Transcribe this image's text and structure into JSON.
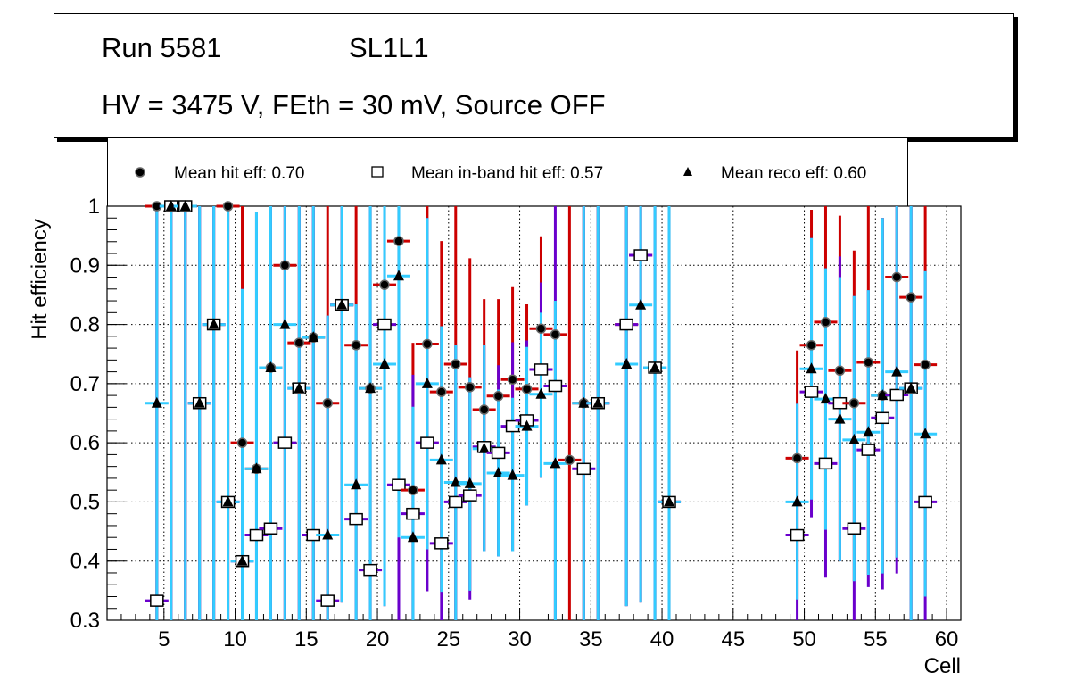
{
  "header": {
    "run": "Run 5581",
    "layer": "SL1L1",
    "conditions": "HV = 3475 V, FEth = 30 mV, Source OFF"
  },
  "colors": {
    "hit": "#cc0000",
    "inband": "#6a00cc",
    "reco": "#33ccff"
  },
  "chart_data": {
    "type": "scatter",
    "title": "Run 5581 SL1L1 — HV = 3475 V, FEth = 30 mV, Source OFF",
    "xlabel": "Cell",
    "ylabel": "Hit efficiency",
    "xlim": [
      1,
      61
    ],
    "ylim": [
      0.3,
      1.0
    ],
    "xticks": [
      5,
      10,
      15,
      20,
      25,
      30,
      35,
      40,
      45,
      50,
      55,
      60
    ],
    "yticks": [
      "0.3",
      "0.4",
      "0.5",
      "0.6",
      "0.7",
      "0.8",
      "0.9",
      "1"
    ],
    "grid": true,
    "legend_position": "top",
    "legend": [
      {
        "name": "Mean hit  eff: 0.70",
        "marker": "circle"
      },
      {
        "name": "Mean in-band hit eff: 0.57",
        "marker": "open-square"
      },
      {
        "name": "Mean reco eff: 0.60",
        "marker": "triangle"
      }
    ],
    "point_fields": [
      "x",
      "hit_eff",
      "inband_eff",
      "reco_eff",
      "reco_err_lo",
      "reco_err_hi",
      "inband_err_lo",
      "inband_err_hi",
      "hit_err_hi"
    ],
    "points": [
      [
        4.5,
        1,
        0.333,
        0.667,
        0.3,
        1,
        null,
        null,
        null
      ],
      [
        5.5,
        1,
        1,
        1,
        0.3,
        1,
        null,
        null,
        null
      ],
      [
        6.5,
        1,
        1,
        1,
        0.3,
        1,
        null,
        null,
        null
      ],
      [
        7.5,
        0.667,
        0.667,
        0.667,
        0.3,
        1,
        null,
        null,
        null
      ],
      [
        8.5,
        0.8,
        0.8,
        0.8,
        0.3,
        1,
        null,
        null,
        null
      ],
      [
        9.5,
        1,
        0.5,
        0.5,
        0.3,
        1,
        null,
        null,
        null
      ],
      [
        10.5,
        0.6,
        0.4,
        0.4,
        0.3,
        0.86,
        null,
        null,
        1
      ],
      [
        11.5,
        0.556,
        0.444,
        0.556,
        0.3,
        0.99,
        null,
        null,
        null
      ],
      [
        12.5,
        0.727,
        0.455,
        0.727,
        0.3,
        1,
        null,
        null,
        null
      ],
      [
        13.5,
        0.9,
        0.6,
        0.8,
        0.3,
        1,
        null,
        null,
        null
      ],
      [
        14.5,
        0.769,
        0.692,
        0.692,
        0.3,
        1,
        null,
        null,
        null
      ],
      [
        15.5,
        0.778,
        0.444,
        0.778,
        0.3,
        1,
        null,
        null,
        null
      ],
      [
        16.5,
        0.667,
        0.333,
        0.444,
        0.3,
        0.815,
        null,
        null,
        1
      ],
      [
        17.5,
        0.833,
        0.833,
        0.833,
        0.33,
        1,
        null,
        null,
        null
      ],
      [
        18.5,
        0.765,
        0.471,
        0.529,
        0.3,
        0.834,
        null,
        null,
        1
      ],
      [
        19.5,
        0.692,
        0.385,
        0.692,
        0.3,
        1,
        null,
        null,
        null
      ],
      [
        20.5,
        0.867,
        0.8,
        0.733,
        0.324,
        1,
        null,
        null,
        null
      ],
      [
        21.5,
        0.941,
        0.529,
        0.882,
        0.44,
        1,
        0.3,
        null,
        null
      ],
      [
        22.5,
        0.52,
        0.48,
        0.44,
        0.3,
        0.661,
        null,
        0.715,
        0.769
      ],
      [
        23.5,
        0.767,
        0.6,
        0.7,
        0.42,
        0.98,
        0.349,
        null,
        1
      ],
      [
        24.5,
        0.686,
        0.43,
        0.571,
        0.348,
        0.797,
        0.3,
        null,
        0.941
      ],
      [
        25.5,
        0.733,
        0.5,
        0.533,
        0.3,
        0.765,
        null,
        null,
        1
      ],
      [
        26.5,
        0.694,
        0.511,
        0.531,
        0.35,
        0.711,
        0.335,
        null,
        0.912
      ],
      [
        27.5,
        0.656,
        0.593,
        0.59,
        0.417,
        0.765,
        null,
        null,
        0.843
      ],
      [
        28.5,
        0.679,
        0.583,
        0.549,
        0.408,
        0.69,
        null,
        0.731,
        0.843
      ],
      [
        29.5,
        0.707,
        0.628,
        0.545,
        0.417,
        0.676,
        null,
        0.77,
        0.863
      ],
      [
        30.5,
        0.691,
        0.638,
        0.628,
        0.494,
        0.762,
        null,
        0.773,
        0.834
      ],
      [
        31.5,
        0.793,
        0.724,
        0.682,
        0.541,
        0.82,
        null,
        0.871,
        0.949
      ],
      [
        32.5,
        0.783,
        0.696,
        0.565,
        0.3,
        0.84,
        null,
        1,
        null
      ],
      [
        33.5,
        0.571,
        null,
        null,
        0.3,
        1,
        null,
        null,
        1
      ],
      [
        34.5,
        0.667,
        0.556,
        0.667,
        0.3,
        1,
        null,
        null,
        null
      ],
      [
        35.5,
        0.667,
        0.667,
        0.667,
        0.3,
        1,
        null,
        null,
        null
      ],
      [
        37.5,
        0.8,
        0.8,
        0.733,
        0.324,
        1,
        null,
        null,
        null
      ],
      [
        38.5,
        0.917,
        0.917,
        0.833,
        0.33,
        1,
        null,
        null,
        null
      ],
      [
        39.5,
        0.727,
        0.727,
        0.727,
        0.3,
        1,
        null,
        null,
        null
      ],
      [
        40.5,
        0.5,
        0.5,
        0.5,
        0.3,
        1,
        null,
        null,
        null
      ],
      [
        49.5,
        0.574,
        0.444,
        0.5,
        0.335,
        0.666,
        0.3,
        null,
        0.756
      ],
      [
        50.5,
        0.765,
        0.686,
        0.725,
        0.504,
        0.946,
        0.474,
        null,
        0.994
      ],
      [
        51.5,
        0.804,
        0.565,
        0.674,
        0.453,
        0.895,
        0.372,
        null,
        1
      ],
      [
        52.5,
        0.722,
        0.667,
        0.64,
        0.4,
        0.88,
        null,
        0.915,
        0.984
      ],
      [
        53.5,
        0.667,
        0.455,
        0.605,
        0.366,
        0.848,
        0.3,
        null,
        0.925
      ],
      [
        54.5,
        0.736,
        0.588,
        0.618,
        0.377,
        0.858,
        0.356,
        null,
        1
      ],
      [
        55.5,
        0.68,
        0.642,
        0.68,
        0.379,
        0.98,
        0.352,
        null,
        null
      ],
      [
        56.5,
        0.88,
        0.681,
        0.72,
        0.406,
        1,
        0.379,
        null,
        null
      ],
      [
        57.5,
        0.846,
        0.692,
        0.692,
        0.3,
        1,
        null,
        null,
        null
      ],
      [
        58.5,
        0.732,
        0.5,
        0.615,
        0.34,
        0.89,
        0.3,
        null,
        1
      ]
    ]
  }
}
